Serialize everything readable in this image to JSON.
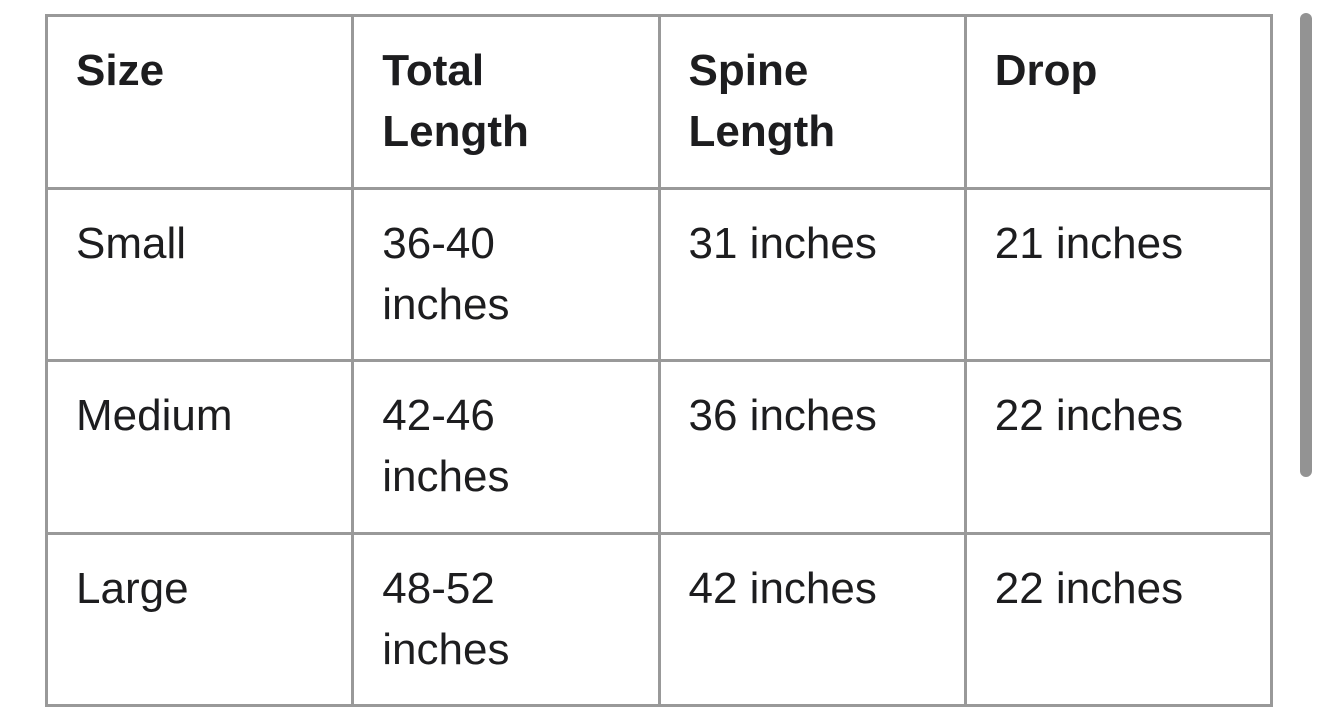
{
  "theme": {
    "page_bg": "#ffffff",
    "cell_bg": "#ffffff",
    "text_color": "#1d1d1f",
    "border_color": "#999999",
    "thumb_color": "#808080"
  },
  "table": {
    "columns": [
      "Size",
      "Total Length",
      "Spine Length",
      "Drop"
    ],
    "rows": [
      {
        "size": "Small",
        "total_length": "36-40 inches",
        "spine_length": "31 inches",
        "drop": "21 inches"
      },
      {
        "size": "Medium",
        "total_length": "42-46 inches",
        "spine_length": "36 inches",
        "drop": "22 inches"
      },
      {
        "size": "Large",
        "total_length": "48-52 inches",
        "spine_length": "42 inches",
        "drop": "22 inches"
      }
    ]
  },
  "chart_data": {
    "type": "table",
    "title": "",
    "columns": [
      "Size",
      "Total Length",
      "Spine Length",
      "Drop"
    ],
    "cells": [
      [
        "Small",
        "36-40 inches",
        "31 inches",
        "21 inches"
      ],
      [
        "Medium",
        "42-46 inches",
        "36 inches",
        "22 inches"
      ],
      [
        "Large",
        "48-52 inches",
        "42 inches",
        "22 inches"
      ]
    ]
  }
}
